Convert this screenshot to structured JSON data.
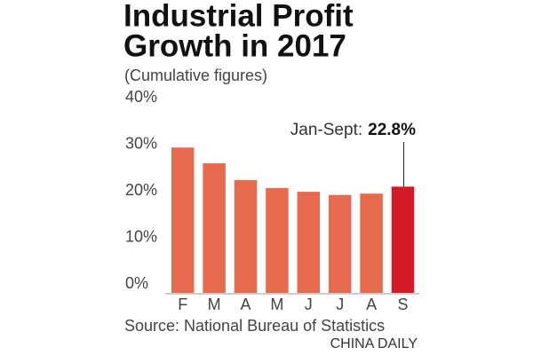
{
  "chart_data": {
    "type": "bar",
    "title": "Industrial Profit",
    "title_line2": "Growth in 2017",
    "subtitle": "(Cumulative figures)",
    "categories": [
      "F",
      "M",
      "A",
      "M",
      "J",
      "J",
      "A",
      "S"
    ],
    "values": [
      31.2,
      27.8,
      24.2,
      22.5,
      21.7,
      21.0,
      21.3,
      22.8
    ],
    "value_labels": [
      null,
      null,
      null,
      null,
      null,
      null,
      null,
      "22.8%"
    ],
    "colors": [
      "#e86a4e",
      "#e86a4e",
      "#e86a4e",
      "#e86a4e",
      "#e86a4e",
      "#e86a4e",
      "#e86a4e",
      "#d41a26"
    ],
    "annotation": "Jan-Sept:",
    "ylim": [
      0,
      40
    ],
    "yticks": [
      {
        "value": 0,
        "label": "0%"
      },
      {
        "value": 10,
        "label": "10%"
      },
      {
        "value": 20,
        "label": "20%"
      },
      {
        "value": 30,
        "label": "30%"
      },
      {
        "value": 40,
        "label": "40%"
      }
    ],
    "grid": false,
    "source": "Source: National Bureau of Statistics",
    "credit": "CHINA DAILY"
  }
}
